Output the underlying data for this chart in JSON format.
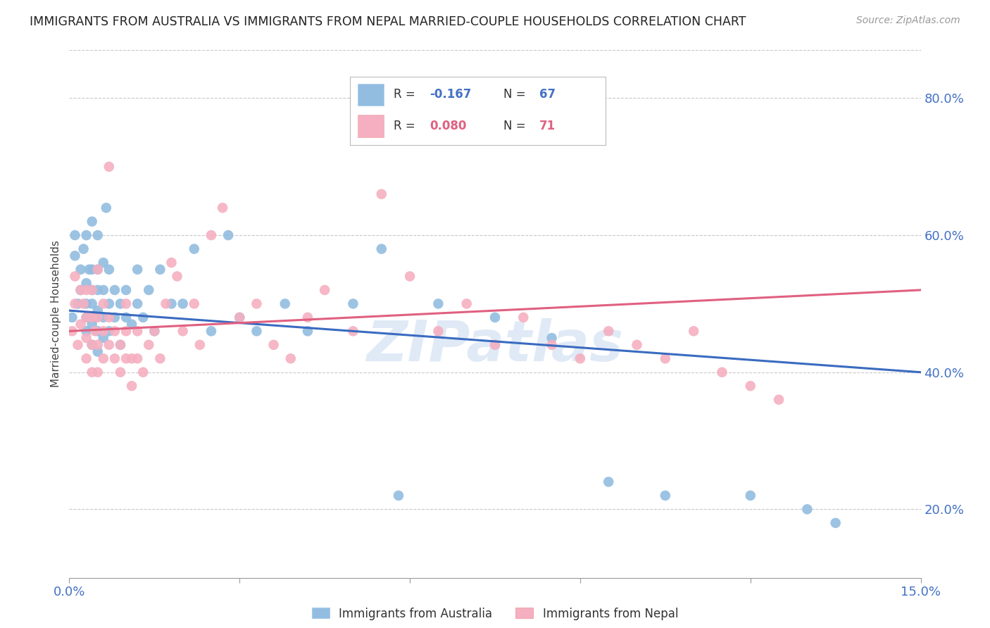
{
  "title": "IMMIGRANTS FROM AUSTRALIA VS IMMIGRANTS FROM NEPAL MARRIED-COUPLE HOUSEHOLDS CORRELATION CHART",
  "source": "Source: ZipAtlas.com",
  "ylabel": "Married-couple Households",
  "y_ticks": [
    0.2,
    0.4,
    0.6,
    0.8
  ],
  "y_tick_labels": [
    "20.0%",
    "40.0%",
    "60.0%",
    "80.0%"
  ],
  "xlim": [
    0.0,
    0.15
  ],
  "ylim": [
    0.1,
    0.87
  ],
  "color_australia": "#92bde0",
  "color_nepal": "#f5afc0",
  "line_color_australia": "#3a6bc0",
  "line_color_nepal": "#e06080",
  "watermark": "ZIPatlas",
  "australia_x": [
    0.0005,
    0.001,
    0.001,
    0.0015,
    0.002,
    0.002,
    0.0025,
    0.003,
    0.003,
    0.003,
    0.003,
    0.003,
    0.0035,
    0.004,
    0.004,
    0.004,
    0.004,
    0.004,
    0.004,
    0.0045,
    0.005,
    0.005,
    0.005,
    0.005,
    0.005,
    0.005,
    0.006,
    0.006,
    0.006,
    0.006,
    0.0065,
    0.007,
    0.007,
    0.007,
    0.008,
    0.008,
    0.009,
    0.009,
    0.01,
    0.01,
    0.011,
    0.012,
    0.012,
    0.013,
    0.014,
    0.015,
    0.016,
    0.018,
    0.02,
    0.022,
    0.025,
    0.028,
    0.03,
    0.033,
    0.038,
    0.042,
    0.05,
    0.055,
    0.058,
    0.065,
    0.075,
    0.085,
    0.095,
    0.105,
    0.12,
    0.13,
    0.135
  ],
  "australia_y": [
    0.48,
    0.57,
    0.6,
    0.5,
    0.52,
    0.55,
    0.58,
    0.46,
    0.48,
    0.5,
    0.53,
    0.6,
    0.55,
    0.44,
    0.47,
    0.5,
    0.52,
    0.55,
    0.62,
    0.48,
    0.43,
    0.46,
    0.49,
    0.52,
    0.55,
    0.6,
    0.45,
    0.48,
    0.52,
    0.56,
    0.64,
    0.46,
    0.5,
    0.55,
    0.48,
    0.52,
    0.44,
    0.5,
    0.48,
    0.52,
    0.47,
    0.55,
    0.5,
    0.48,
    0.52,
    0.46,
    0.55,
    0.5,
    0.5,
    0.58,
    0.46,
    0.6,
    0.48,
    0.46,
    0.5,
    0.46,
    0.5,
    0.58,
    0.22,
    0.5,
    0.48,
    0.45,
    0.24,
    0.22,
    0.22,
    0.2,
    0.18
  ],
  "nepal_x": [
    0.0005,
    0.001,
    0.001,
    0.0015,
    0.002,
    0.002,
    0.0025,
    0.003,
    0.003,
    0.003,
    0.003,
    0.004,
    0.004,
    0.004,
    0.004,
    0.0045,
    0.005,
    0.005,
    0.005,
    0.005,
    0.006,
    0.006,
    0.006,
    0.007,
    0.007,
    0.007,
    0.008,
    0.008,
    0.009,
    0.009,
    0.01,
    0.01,
    0.01,
    0.011,
    0.011,
    0.012,
    0.012,
    0.013,
    0.014,
    0.015,
    0.016,
    0.017,
    0.018,
    0.019,
    0.02,
    0.022,
    0.023,
    0.025,
    0.027,
    0.03,
    0.033,
    0.036,
    0.039,
    0.042,
    0.045,
    0.05,
    0.055,
    0.06,
    0.065,
    0.07,
    0.075,
    0.08,
    0.085,
    0.09,
    0.095,
    0.1,
    0.105,
    0.11,
    0.115,
    0.12,
    0.125
  ],
  "nepal_y": [
    0.46,
    0.5,
    0.54,
    0.44,
    0.47,
    0.52,
    0.5,
    0.42,
    0.45,
    0.48,
    0.52,
    0.4,
    0.44,
    0.48,
    0.52,
    0.46,
    0.4,
    0.44,
    0.48,
    0.55,
    0.42,
    0.46,
    0.5,
    0.44,
    0.48,
    0.7,
    0.42,
    0.46,
    0.4,
    0.44,
    0.42,
    0.46,
    0.5,
    0.38,
    0.42,
    0.42,
    0.46,
    0.4,
    0.44,
    0.46,
    0.42,
    0.5,
    0.56,
    0.54,
    0.46,
    0.5,
    0.44,
    0.6,
    0.64,
    0.48,
    0.5,
    0.44,
    0.42,
    0.48,
    0.52,
    0.46,
    0.66,
    0.54,
    0.46,
    0.5,
    0.44,
    0.48,
    0.44,
    0.42,
    0.46,
    0.44,
    0.42,
    0.46,
    0.4,
    0.38,
    0.36
  ]
}
